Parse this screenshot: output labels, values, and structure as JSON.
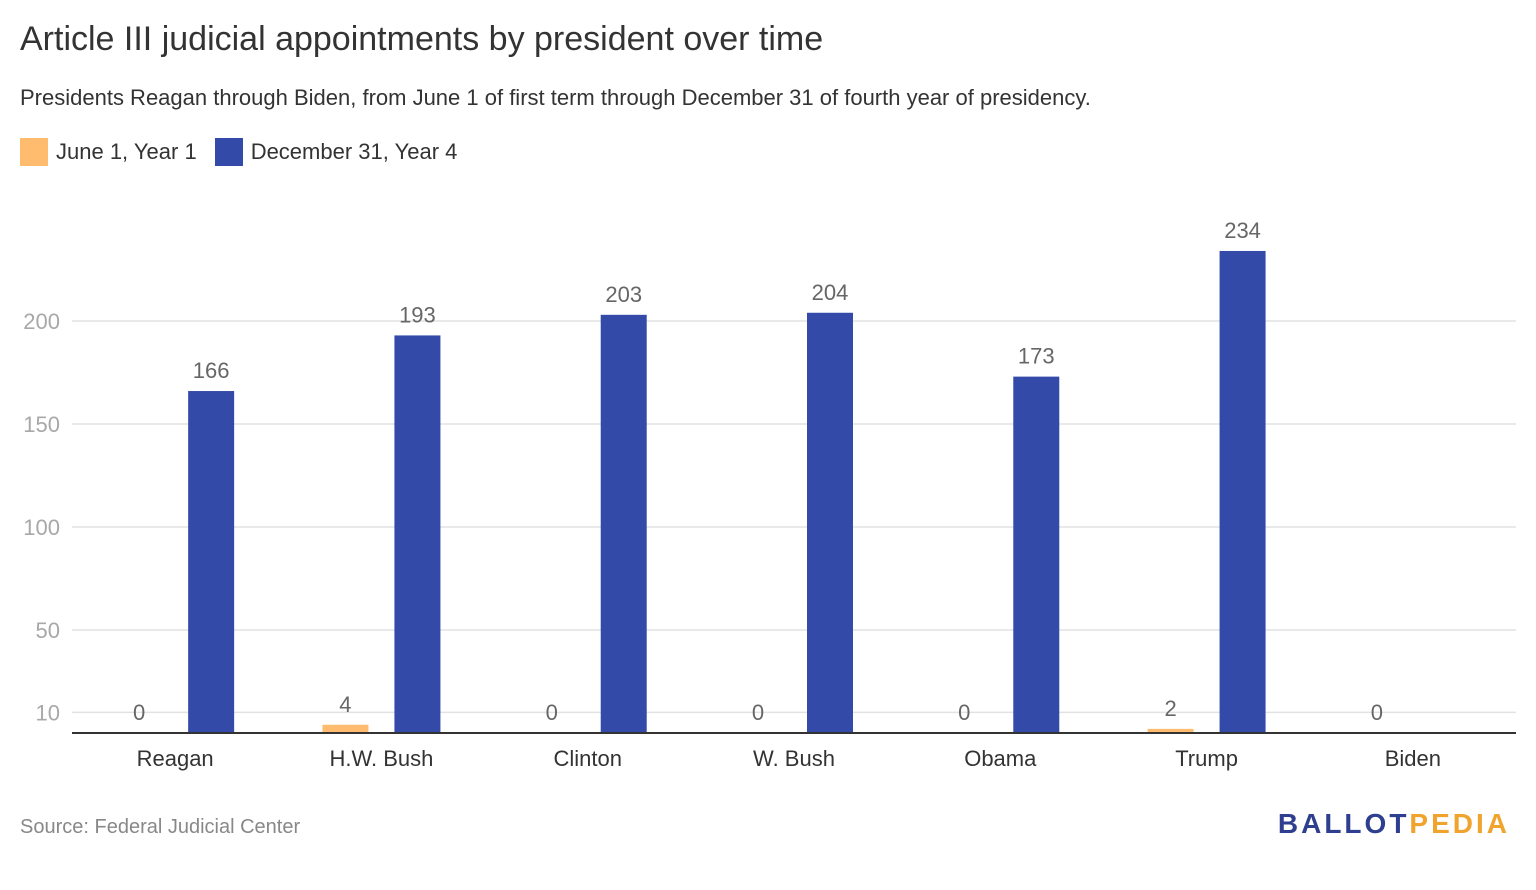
{
  "header": {
    "title": "Article III judicial appointments by president over time",
    "subtitle": "Presidents Reagan through Biden, from June 1 of first term through December 31 of fourth year of presidency."
  },
  "legend": {
    "items": [
      {
        "label": "June 1, Year 1",
        "color": "#ffbb6e"
      },
      {
        "label": "December 31, Year 4",
        "color": "#334aa8"
      }
    ]
  },
  "footer": {
    "source": "Source: Federal Judicial Center",
    "brand_part1": "BALLOT",
    "brand_part2": "PEDIA"
  },
  "chart_data": {
    "type": "bar",
    "categories": [
      "Reagan",
      "H.W. Bush",
      "Clinton",
      "W. Bush",
      "Obama",
      "Trump",
      "Biden"
    ],
    "series": [
      {
        "name": "June 1, Year 1",
        "color": "#ffbb6e",
        "values": [
          0,
          4,
          0,
          0,
          0,
          2,
          0
        ],
        "labels": [
          "0",
          "4",
          "0",
          "0",
          "0",
          "2",
          "0"
        ]
      },
      {
        "name": "December 31, Year 4",
        "color": "#334aa8",
        "values": [
          166,
          193,
          203,
          204,
          173,
          234,
          null
        ],
        "labels": [
          "166",
          "193",
          "203",
          "204",
          "173",
          "234",
          ""
        ]
      }
    ],
    "yticks": [
      10,
      50,
      100,
      150,
      200
    ],
    "ylim": [
      0,
      250
    ],
    "grid": true,
    "legend_position": "top-left"
  }
}
